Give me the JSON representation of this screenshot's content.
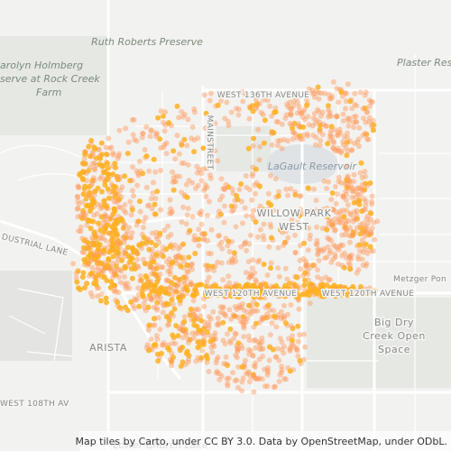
{
  "labels": [
    "Ruth Roberts Preserve",
    "arolyn Holmberg",
    "serve at Rock Creek",
    "Farm",
    "Plaster Reser",
    "WEST 136TH AVENUE",
    "MAINSTREET",
    "LaGault Reservoir",
    "WILLOW PARK",
    "WEST",
    "DUSTRIAL LANE",
    "WEST 120TH AVENUE",
    "WEST 120TH AVENUE",
    "Metzger Pon",
    "Big Dry",
    "Creek Open",
    "Space",
    "ARISTA",
    "WEST 108TH AV",
    "Lower Church Lake"
  ],
  "attribution": "Map tiles by Carto, under CC BY 3.0. Data by OpenStreetMap, under ODbL."
}
